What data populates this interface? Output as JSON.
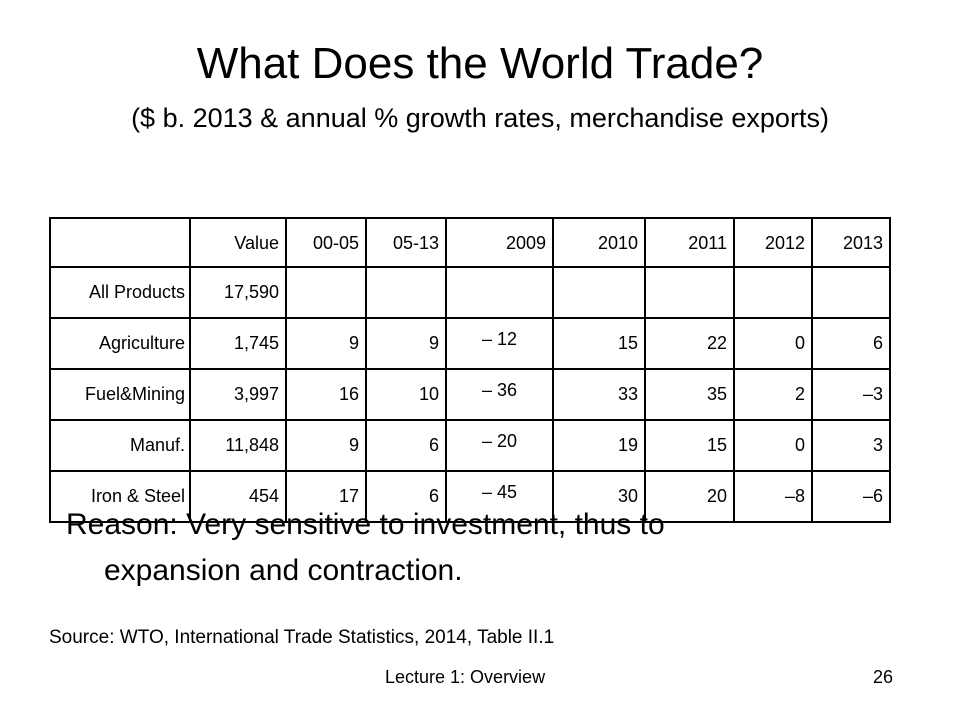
{
  "slide": {
    "title": "What Does the World Trade?",
    "subtitle": "($ b. 2013 & annual % growth rates, merchandise exports)"
  },
  "table": {
    "headers": [
      "",
      "Value",
      "00-05",
      "05-13",
      "2009",
      "2010",
      "2011",
      "2012",
      "2013"
    ],
    "rows": [
      {
        "label": "All Products",
        "cells": [
          "17,590",
          "",
          "",
          "",
          "",
          "",
          "",
          ""
        ]
      },
      {
        "label": "Agriculture",
        "cells": [
          "1,745",
          "9",
          "9",
          "– 12",
          "15",
          "22",
          "0",
          "6"
        ]
      },
      {
        "label": "Fuel&Mining",
        "cells": [
          "3,997",
          "16",
          "10",
          "– 36",
          "33",
          "35",
          "2",
          "–3"
        ]
      },
      {
        "label": "Manuf.",
        "cells": [
          "11,848",
          "9",
          "6",
          "– 20",
          "19",
          "15",
          "0",
          "3"
        ]
      },
      {
        "label": "Iron & Steel",
        "cells": [
          "454",
          "17",
          "6",
          "– 45",
          "30",
          "20",
          "–8",
          "–6"
        ]
      }
    ]
  },
  "overlay": {
    "line1": "Reason:  Very sensitive to investment, thus to",
    "line2": "expansion and contraction."
  },
  "source": "Source:  WTO, International Trade Statistics, 2014, Table II.1",
  "footer": {
    "lecture": "Lecture 1: Overview",
    "page": "26"
  }
}
